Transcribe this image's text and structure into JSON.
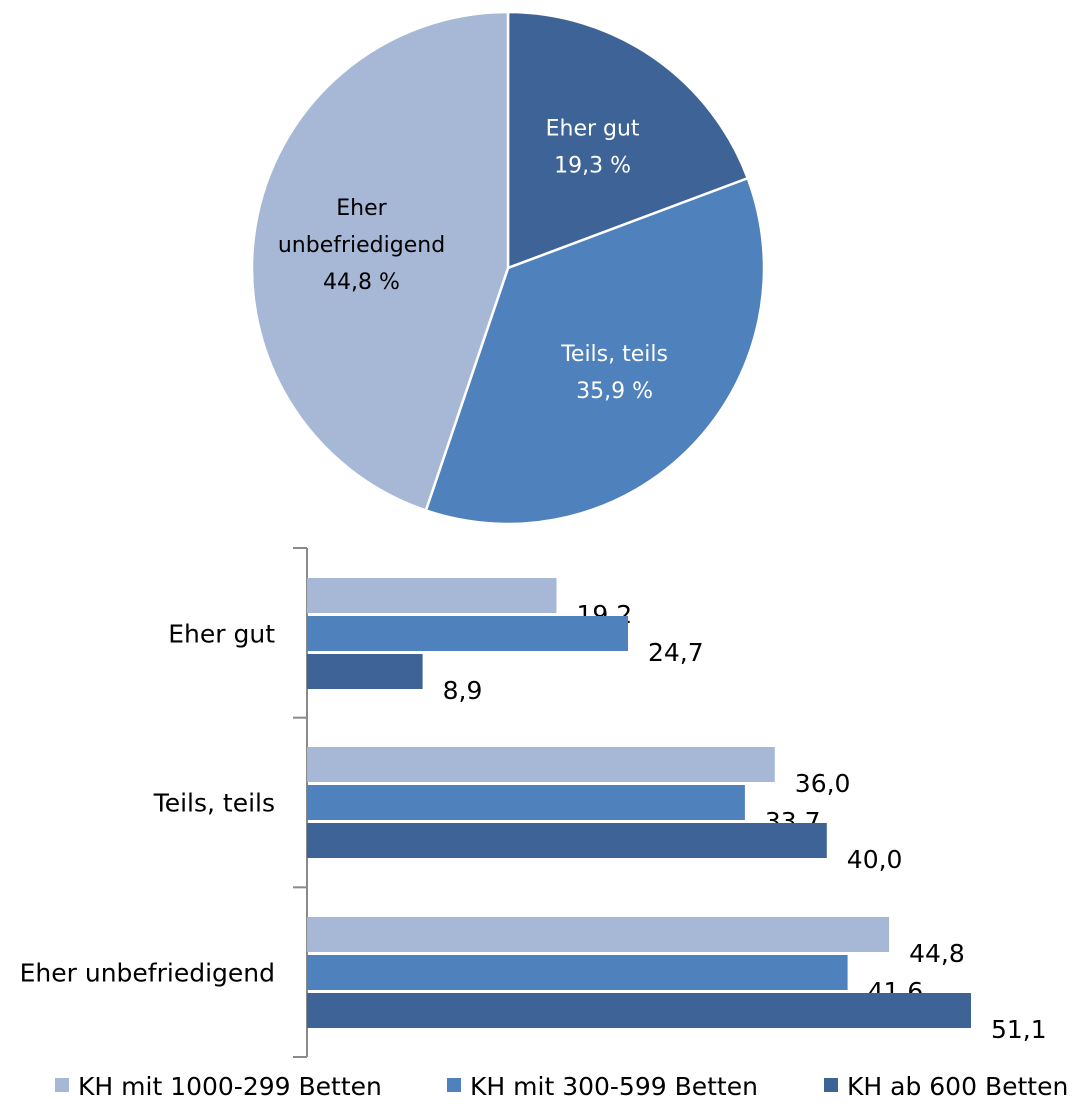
{
  "colors": {
    "light": "#a7b8d6",
    "mid": "#4f81bd",
    "dark": "#3e6497",
    "axis": "#8a8a8a"
  },
  "chart_data": [
    {
      "type": "pie",
      "slices": [
        {
          "label_lines": [
            "Eher gut"
          ],
          "value_text": "19,3 %",
          "value": 19.3,
          "color_key": "dark",
          "label_color": "light"
        },
        {
          "label_lines": [
            "Teils, teils"
          ],
          "value_text": "35,9 %",
          "value": 35.9,
          "color_key": "mid",
          "label_color": "light"
        },
        {
          "label_lines": [
            "Eher",
            "unbefriedigend"
          ],
          "value_text": "44,8 %",
          "value": 44.8,
          "color_key": "light",
          "label_color": "dark"
        }
      ]
    },
    {
      "type": "bar",
      "orientation": "horizontal",
      "categories": [
        "Eher gut",
        "Teils, teils",
        "Eher unbefriedigend"
      ],
      "series": [
        {
          "name": "KH mit 1000-299 Betten",
          "values": [
            19.2,
            36.0,
            44.8
          ],
          "labels": [
            "19,2",
            "36,0",
            "44,8"
          ],
          "color_key": "light"
        },
        {
          "name": "KH mit 300-599 Betten",
          "values": [
            24.7,
            33.7,
            41.6
          ],
          "labels": [
            "24,7",
            "33,7",
            "41,6"
          ],
          "color_key": "mid"
        },
        {
          "name": "KH ab 600 Betten",
          "values": [
            8.9,
            40.0,
            51.1
          ],
          "labels": [
            "8,9",
            "40,0",
            "51,1"
          ],
          "color_key": "dark"
        }
      ],
      "legend_position": "bottom",
      "grid": false
    }
  ]
}
